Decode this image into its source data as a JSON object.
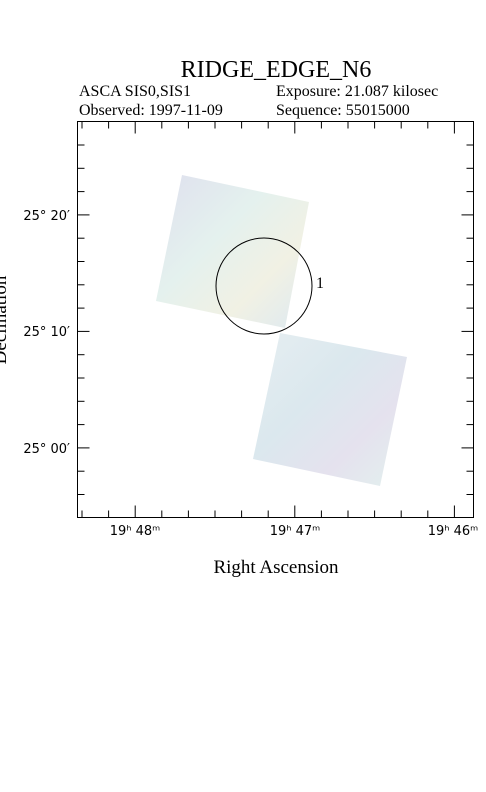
{
  "header": {
    "title": "RIDGE_EDGE_N6",
    "instrument": "ASCA SIS0,SIS1",
    "exposure": "Exposure: 21.087 kilosec",
    "observed": "Observed: 1997-11-09",
    "sequence": "Sequence: 55015000"
  },
  "plot": {
    "x_label": "Right Ascension",
    "y_label": "Declination",
    "x_ticks": [
      "19ʰ 48ᵐ",
      "19ʰ 47ᵐ",
      "19ʰ 46ᵐ"
    ],
    "y_ticks": [
      "25° 20′",
      "25° 10′",
      "25° 00′"
    ],
    "region_label": "1"
  }
}
